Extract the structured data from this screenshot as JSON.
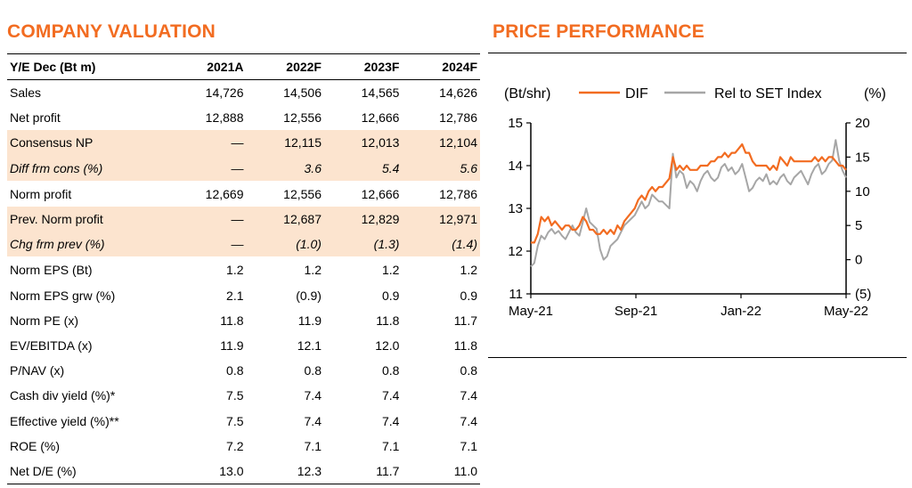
{
  "valuation": {
    "title": "COMPANY VALUATION",
    "header": [
      "Y/E Dec (Bt m)",
      "2021A",
      "2022F",
      "2023F",
      "2024F"
    ],
    "rows": [
      {
        "label": "Sales",
        "values": [
          "14,726",
          "14,506",
          "14,565",
          "14,626"
        ],
        "style": ""
      },
      {
        "label": "Net profit",
        "values": [
          "12,888",
          "12,556",
          "12,666",
          "12,786"
        ],
        "style": ""
      },
      {
        "label": "Consensus NP",
        "values": [
          "—",
          "12,115",
          "12,013",
          "12,104"
        ],
        "style": "hl"
      },
      {
        "label": "Diff frm cons (%)",
        "values": [
          "—",
          "3.6",
          "5.4",
          "5.6"
        ],
        "style": "hl it"
      },
      {
        "label": "Norm profit",
        "values": [
          "12,669",
          "12,556",
          "12,666",
          "12,786"
        ],
        "style": "sep"
      },
      {
        "label": "Prev. Norm profit",
        "values": [
          "—",
          "12,687",
          "12,829",
          "12,971"
        ],
        "style": "hl"
      },
      {
        "label": "Chg frm prev (%)",
        "values": [
          "—",
          "(1.0)",
          "(1.3)",
          "(1.4)"
        ],
        "style": "hl it"
      },
      {
        "label": "Norm EPS (Bt)",
        "values": [
          "1.2",
          "1.2",
          "1.2",
          "1.2"
        ],
        "style": "sep"
      },
      {
        "label": "Norm EPS grw (%)",
        "values": [
          "2.1",
          "(0.9)",
          "0.9",
          "0.9"
        ],
        "style": ""
      },
      {
        "label": "Norm PE (x)",
        "values": [
          "11.8",
          "11.9",
          "11.8",
          "11.7"
        ],
        "style": ""
      },
      {
        "label": "EV/EBITDA (x)",
        "values": [
          "11.9",
          "12.1",
          "12.0",
          "11.8"
        ],
        "style": ""
      },
      {
        "label": "P/NAV (x)",
        "values": [
          "0.8",
          "0.8",
          "0.8",
          "0.8"
        ],
        "style": ""
      },
      {
        "label": "Cash div yield (%)*",
        "values": [
          "7.5",
          "7.4",
          "7.4",
          "7.4"
        ],
        "style": ""
      },
      {
        "label": "Effective yield (%)**",
        "values": [
          "7.5",
          "7.4",
          "7.4",
          "7.4"
        ],
        "style": ""
      },
      {
        "label": "ROE (%)",
        "values": [
          "7.2",
          "7.1",
          "7.1",
          "7.1"
        ],
        "style": ""
      },
      {
        "label": "Net D/E (%)",
        "values": [
          "13.0",
          "12.3",
          "11.7",
          "11.0"
        ],
        "style": "last"
      }
    ]
  },
  "performance": {
    "title": "PRICE PERFORMANCE"
  },
  "chart_data": {
    "type": "line",
    "left_unit": "(Bt/shr)",
    "right_unit": "(%)",
    "x_ticks": [
      "May-21",
      "Sep-21",
      "Jan-22",
      "May-22"
    ],
    "left_axis": {
      "ticks": [
        "15",
        "14",
        "13",
        "12",
        "11"
      ],
      "ylim": [
        11,
        15
      ]
    },
    "right_axis": {
      "ticks": [
        "20",
        "15",
        "10",
        "5",
        "0",
        "(5)"
      ],
      "ylim": [
        -5,
        20
      ]
    },
    "legend_position": "top",
    "colors": {
      "DIF": "#f26c21",
      "Rel to SET Index": "#a6a6a6"
    },
    "series": [
      {
        "name": "DIF",
        "axis": "left",
        "x": [
          0,
          4,
          8,
          12,
          16,
          20,
          24,
          28,
          32,
          36,
          40,
          44,
          48,
          52,
          56,
          60,
          64,
          68,
          72,
          76,
          80,
          84,
          88,
          92,
          96,
          100,
          104,
          108,
          112,
          116,
          120,
          124,
          128,
          132,
          136,
          140,
          144,
          148,
          152,
          156,
          160,
          164,
          168,
          172,
          176,
          180,
          184,
          188,
          192,
          196,
          200,
          204,
          208,
          212,
          216,
          220,
          224,
          228,
          232,
          236,
          240,
          244,
          248,
          252,
          256,
          260,
          264,
          268,
          272,
          276,
          280,
          284,
          288,
          292,
          296,
          300,
          304,
          308,
          312,
          316,
          320,
          324,
          328,
          332,
          336,
          340,
          344,
          348,
          352,
          356,
          360,
          364
        ],
        "values": [
          12.2,
          12.2,
          12.4,
          12.8,
          12.7,
          12.8,
          12.6,
          12.7,
          12.6,
          12.5,
          12.6,
          12.6,
          12.5,
          12.5,
          12.6,
          12.8,
          12.7,
          12.5,
          12.5,
          12.4,
          12.4,
          12.5,
          12.4,
          12.5,
          12.4,
          12.6,
          12.5,
          12.7,
          12.8,
          12.9,
          13.0,
          13.2,
          13.3,
          13.2,
          13.4,
          13.5,
          13.4,
          13.5,
          13.5,
          13.6,
          13.7,
          14.2,
          13.9,
          14.0,
          13.9,
          14.0,
          13.9,
          13.9,
          13.9,
          14.0,
          14.0,
          14.0,
          14.1,
          14.1,
          14.2,
          14.2,
          14.3,
          14.2,
          14.3,
          14.3,
          14.4,
          14.5,
          14.3,
          14.3,
          14.1,
          14.0,
          14.0,
          14.0,
          14.0,
          13.9,
          14.0,
          13.9,
          14.2,
          14.1,
          14.0,
          14.2,
          14.1,
          14.1,
          14.1,
          14.1,
          14.1,
          14.1,
          14.2,
          14.1,
          14.2,
          14.1,
          14.2,
          14.2,
          14.1,
          14.0,
          14.0,
          13.9
        ]
      },
      {
        "name": "Rel to SET Index",
        "axis": "right",
        "x": [
          0,
          4,
          8,
          12,
          16,
          20,
          24,
          28,
          32,
          36,
          40,
          44,
          48,
          52,
          56,
          60,
          64,
          68,
          72,
          76,
          80,
          84,
          88,
          92,
          96,
          100,
          104,
          108,
          112,
          116,
          120,
          124,
          128,
          132,
          136,
          140,
          144,
          148,
          152,
          156,
          160,
          164,
          168,
          172,
          176,
          180,
          184,
          188,
          192,
          196,
          200,
          204,
          208,
          212,
          216,
          220,
          224,
          228,
          232,
          236,
          240,
          244,
          248,
          252,
          256,
          260,
          264,
          268,
          272,
          276,
          280,
          284,
          288,
          292,
          296,
          300,
          304,
          308,
          312,
          316,
          320,
          324,
          328,
          332,
          336,
          340,
          344,
          348,
          352,
          356,
          360,
          364
        ],
        "values": [
          -1.0,
          -0.5,
          2.0,
          3.5,
          3.0,
          4.0,
          4.5,
          3.8,
          4.2,
          3.5,
          3.0,
          4.0,
          5.0,
          4.0,
          3.5,
          5.5,
          7.5,
          5.5,
          5.0,
          4.5,
          1.5,
          0.0,
          0.5,
          2.0,
          2.5,
          3.0,
          4.0,
          5.0,
          5.5,
          6.0,
          6.5,
          7.5,
          8.5,
          7.5,
          8.0,
          9.5,
          9.0,
          8.5,
          8.5,
          8.0,
          7.5,
          15.5,
          12.0,
          13.0,
          12.5,
          10.5,
          11.5,
          11.0,
          10.0,
          11.5,
          12.5,
          13.0,
          12.0,
          11.5,
          12.0,
          13.5,
          14.0,
          13.0,
          13.5,
          12.5,
          13.0,
          14.0,
          12.0,
          10.0,
          10.5,
          11.5,
          12.0,
          11.5,
          12.5,
          11.0,
          11.5,
          11.0,
          12.0,
          12.5,
          11.5,
          11.0,
          12.0,
          12.5,
          13.0,
          12.0,
          11.0,
          12.5,
          13.5,
          14.0,
          12.5,
          13.0,
          14.0,
          14.5,
          17.5,
          14.5,
          13.0,
          12.0
        ]
      }
    ]
  }
}
